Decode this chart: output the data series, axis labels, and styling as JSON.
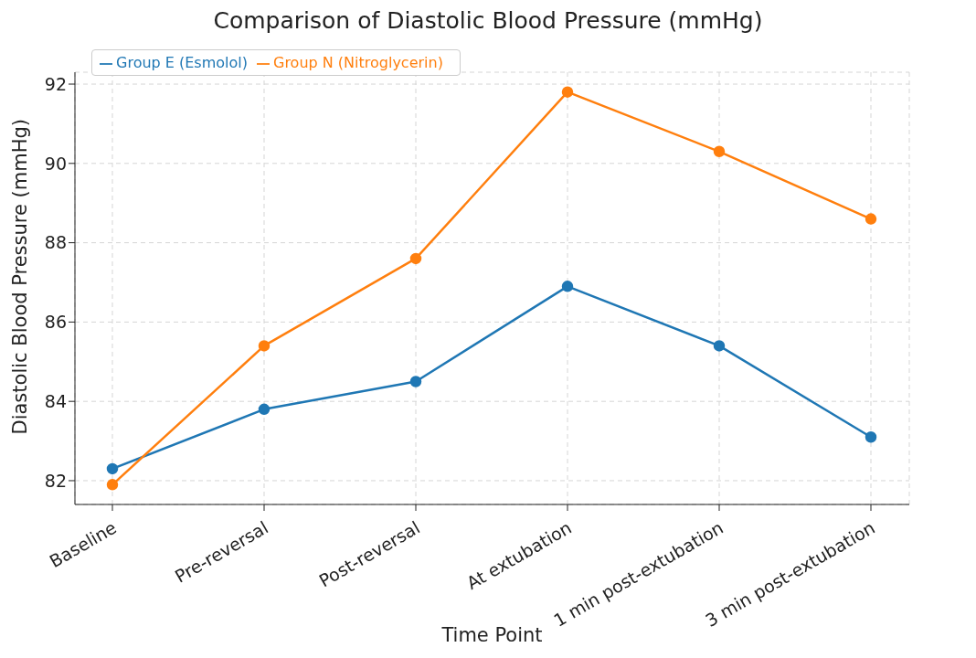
{
  "chart_data": {
    "type": "line",
    "title": "Comparison of Diastolic Blood Pressure (mmHg)",
    "xlabel": "Time Point",
    "ylabel": "Diastolic Blood Pressure (mmHg)",
    "categories": [
      "Baseline",
      "Pre-reversal",
      "Post-reversal",
      "At extubation",
      "1 min post-extubation",
      "3 min post-extubation"
    ],
    "series": [
      {
        "name": "Group E (Esmolol)",
        "color": "#1f77b4",
        "values": [
          82.3,
          83.8,
          84.5,
          86.9,
          85.4,
          83.1
        ]
      },
      {
        "name": "Group N (Nitroglycerin)",
        "color": "#ff7f0e",
        "values": [
          81.9,
          85.4,
          87.6,
          91.8,
          90.3,
          88.6
        ]
      }
    ],
    "ylim": [
      81.4,
      92.3
    ],
    "yticks": [
      82,
      84,
      86,
      88,
      90,
      92
    ],
    "grid": true,
    "legend": "top left",
    "marker": "circle",
    "line_style": "solid"
  }
}
